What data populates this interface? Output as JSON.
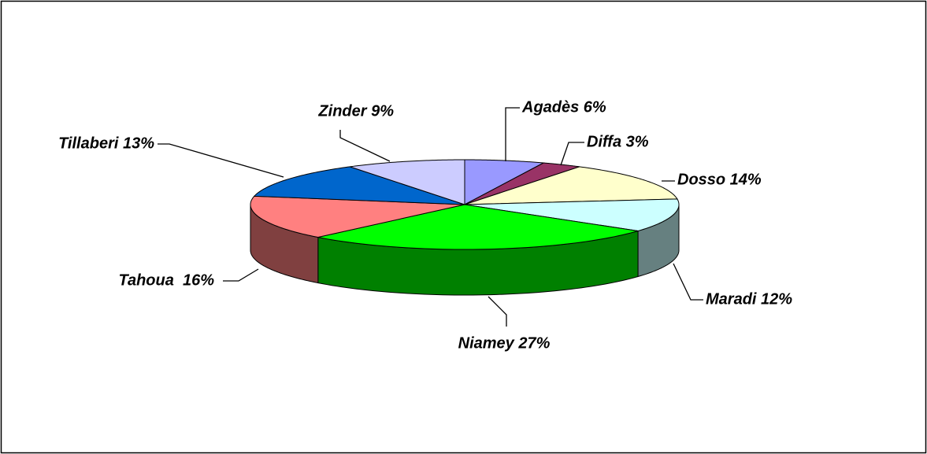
{
  "chart_data": {
    "type": "pie",
    "value_labels": [
      "Agadès 6%",
      "Diffa 3%",
      "Dosso 14%",
      "Maradi 12%",
      "Niamey 27%",
      "Tahoua  16%",
      "Tillaberi 13%",
      "Zinder 9%"
    ],
    "values": [
      6,
      3,
      14,
      12,
      27,
      16,
      13,
      9
    ],
    "colors": [
      "#9999ff",
      "#993366",
      "#ffffcc",
      "#ccffff",
      "#00ff00",
      "#ff8080",
      "#0066cc",
      "#ccccff"
    ],
    "side_colors": [
      "#4d4d80",
      "#4d1a33",
      "#808066",
      "#668080",
      "#008000",
      "#804040",
      "#003366",
      "#666680"
    ]
  }
}
